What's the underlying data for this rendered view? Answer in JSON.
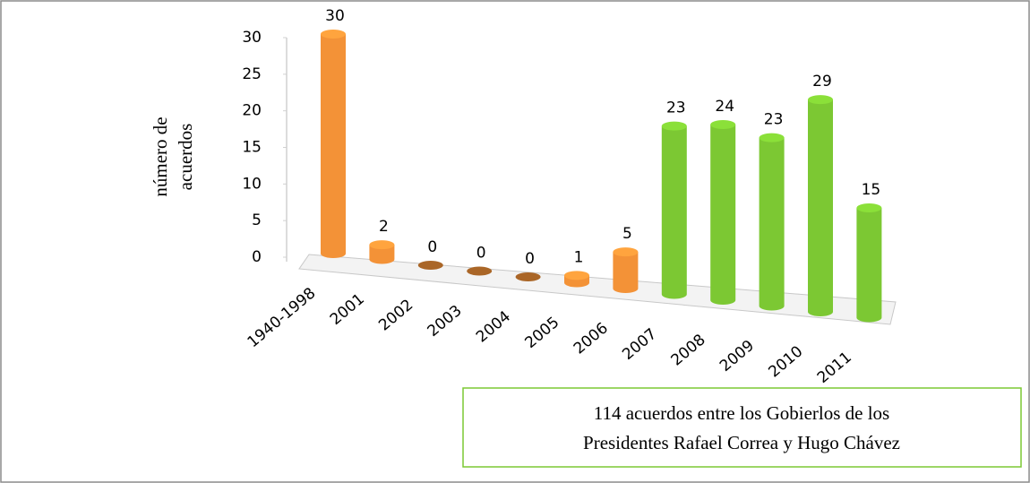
{
  "chart_data": {
    "type": "bar",
    "y_label": [
      "número de",
      "acuerdos"
    ],
    "categories": [
      "1940-1998",
      "2001",
      "2002",
      "2003",
      "2004",
      "2005",
      "2006",
      "2007",
      "2008",
      "2009",
      "2010",
      "2011"
    ],
    "values": [
      30,
      2,
      0,
      0,
      0,
      1,
      5,
      23,
      24,
      23,
      29,
      15
    ],
    "colors": [
      "#f39237",
      "#f39237",
      "#f39237",
      "#f39237",
      "#f39237",
      "#f39237",
      "#f39237",
      "#7cc833",
      "#7cc833",
      "#7cc833",
      "#7cc833",
      "#7cc833"
    ],
    "ylim": [
      0,
      30
    ],
    "yticks": [
      0,
      5,
      10,
      15,
      20,
      25,
      30
    ],
    "annotation": [
      "114 acuerdos entre los Gobierlos de los",
      "Presidentes Rafael Correa y Hugo Chávez"
    ],
    "annotation_color": "#7cc833"
  }
}
